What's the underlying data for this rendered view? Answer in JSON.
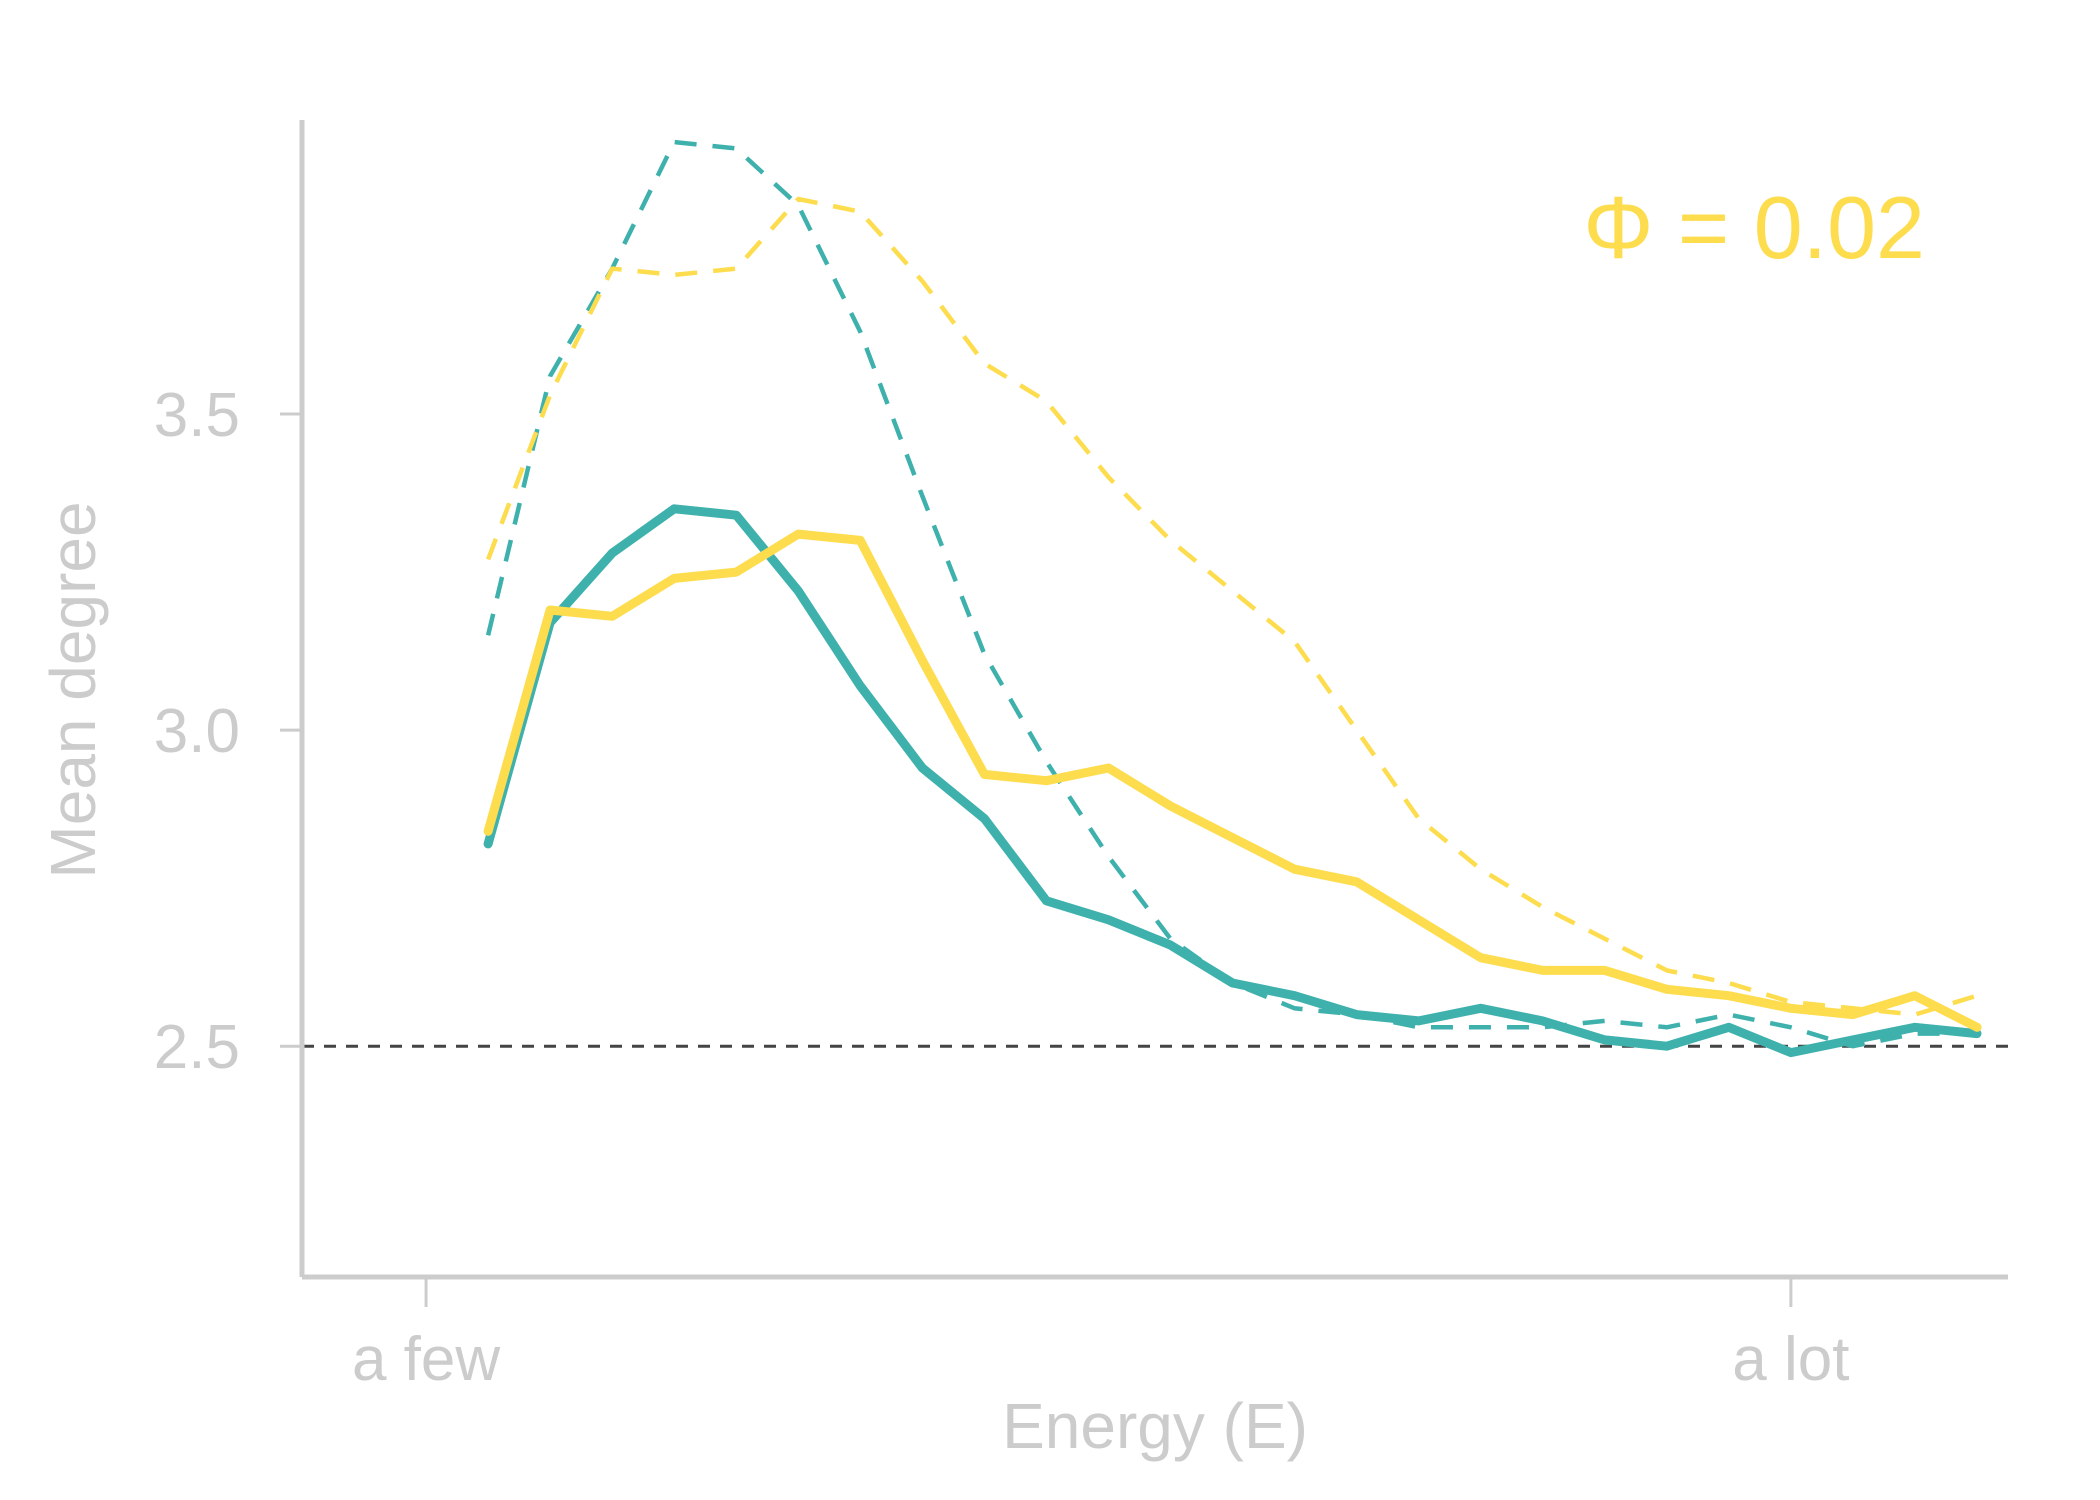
{
  "chart_data": {
    "type": "line",
    "xlabel": "Energy (E)",
    "ylabel": "Mean degree",
    "x_tick_labels": [
      "a few",
      "a lot"
    ],
    "y_ticks": [
      2.5,
      3.0,
      3.5
    ],
    "y_tick_labels": [
      "2.5",
      "3.0",
      "3.5"
    ],
    "ylim": [
      2.135,
      3.965
    ],
    "xlim": [
      -1,
      26.5
    ],
    "x_tick_positions": [
      1,
      23
    ],
    "annotation": "Φ = 0.02",
    "annotation_color": "#fddc4e",
    "reference_line": {
      "y": 2.5,
      "style": "dashed",
      "color": "#444444"
    },
    "x": [
      2,
      3,
      4,
      5,
      6,
      7,
      8,
      9,
      10,
      11,
      12,
      13,
      14,
      15,
      16,
      17,
      18,
      19,
      20,
      21,
      22,
      23,
      24,
      25,
      26
    ],
    "series": [
      {
        "style": "solid",
        "color": "#3fb1ad",
        "values": [
          2.82,
          3.17,
          3.28,
          3.35,
          3.34,
          3.22,
          3.07,
          2.94,
          2.86,
          2.73,
          2.7,
          2.66,
          2.6,
          2.58,
          2.55,
          2.54,
          2.56,
          2.54,
          2.51,
          2.5,
          2.53,
          2.49,
          2.51,
          2.53,
          2.52
        ]
      },
      {
        "style": "solid",
        "color": "#fddc4e",
        "values": [
          2.84,
          3.19,
          3.18,
          3.24,
          3.25,
          3.31,
          3.3,
          3.11,
          2.93,
          2.92,
          2.94,
          2.88,
          2.83,
          2.78,
          2.76,
          2.7,
          2.64,
          2.62,
          2.62,
          2.59,
          2.58,
          2.56,
          2.55,
          2.58,
          2.53
        ]
      },
      {
        "style": "dashed",
        "color": "#3fb1ad",
        "values": [
          3.15,
          3.56,
          3.73,
          3.93,
          3.92,
          3.83,
          3.63,
          3.37,
          3.12,
          2.95,
          2.8,
          2.67,
          2.6,
          2.56,
          2.55,
          2.53,
          2.53,
          2.53,
          2.54,
          2.53,
          2.55,
          2.53,
          2.5,
          2.52,
          2.52
        ]
      },
      {
        "style": "dashed",
        "color": "#fddc4e",
        "values": [
          3.27,
          3.53,
          3.73,
          3.72,
          3.73,
          3.84,
          3.82,
          3.71,
          3.58,
          3.52,
          3.4,
          3.3,
          3.22,
          3.14,
          3.0,
          2.86,
          2.78,
          2.72,
          2.67,
          2.62,
          2.6,
          2.57,
          2.56,
          2.55,
          2.58
        ]
      }
    ]
  }
}
